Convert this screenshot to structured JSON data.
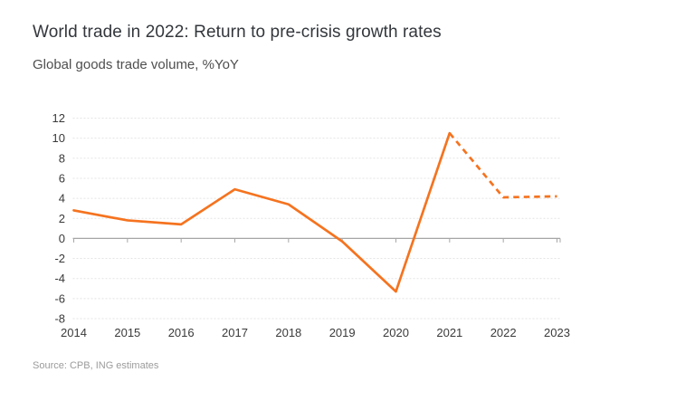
{
  "header": {
    "title": "World trade in 2022: Return to pre-crisis growth rates",
    "subtitle": "Global goods trade volume, %YoY"
  },
  "footer": {
    "source": "Source: CPB, ING estimates"
  },
  "colors": {
    "background": "#ffffff",
    "line": "#f5731f",
    "grid": "#e4e4e4",
    "zero_axis": "#a6a6a6",
    "axis_text": "#3a3a3a",
    "title_text": "#33373c",
    "subtitle_text": "#4f4f4f",
    "source_text": "#9b9b9b"
  },
  "chart_data": {
    "type": "line",
    "title": "World trade in 2022: Return to pre-crisis growth rates",
    "subtitle": "Global goods trade volume, %YoY",
    "xlabel": "",
    "ylabel": "%YoY",
    "categories": [
      "2014",
      "2015",
      "2016",
      "2017",
      "2018",
      "2019",
      "2020",
      "2021",
      "2022",
      "2023"
    ],
    "series": [
      {
        "name": "Global goods trade volume, %YoY",
        "values": [
          2.8,
          1.8,
          1.4,
          4.9,
          3.4,
          -0.3,
          -5.3,
          10.5,
          4.1,
          4.2
        ],
        "color": "#f5731f",
        "solid_through": "2021",
        "dashed_from": "2021",
        "dashed_meaning": "ING estimates / forecast (2022-2023 shown dashed)"
      }
    ],
    "ylim": [
      -8,
      12
    ],
    "yticks": [
      12,
      10,
      8,
      6,
      4,
      2,
      0,
      -2,
      -4,
      -6,
      -8
    ],
    "ytick_step": 2,
    "grid": "horizontal dotted gridlines, solid gray zero axis with downward ticks per year",
    "legend_position": "none"
  }
}
